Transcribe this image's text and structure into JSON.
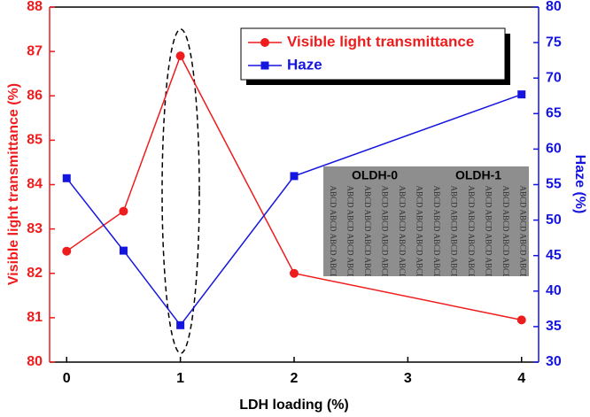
{
  "chart_data": {
    "type": "line",
    "x": [
      0,
      0.5,
      1,
      2,
      4
    ],
    "xlim": [
      -0.15,
      4.15
    ],
    "xticks": [
      0,
      1,
      2,
      3,
      4
    ],
    "xlabel": "LDH loading (%)",
    "ylabel": "Visible light transmittance (%)",
    "y2label": "Haze (%)",
    "ylim": [
      80,
      88
    ],
    "yticks": [
      80,
      81,
      82,
      83,
      84,
      85,
      86,
      87,
      88
    ],
    "y2lim": [
      30,
      80
    ],
    "y2ticks": [
      30,
      35,
      40,
      45,
      50,
      55,
      60,
      65,
      70,
      75,
      80
    ],
    "series": [
      {
        "name": "Visible light transmittance",
        "color": "#ee1c1c",
        "marker": "circle",
        "values": [
          82.5,
          83.4,
          86.9,
          82.0,
          80.95
        ]
      },
      {
        "name": "Haze",
        "color": "#1515e0",
        "marker": "square",
        "axis": "y2",
        "values": [
          55.9,
          45.7,
          35.2,
          56.2,
          67.7
        ]
      }
    ],
    "inset_labels": [
      "OLDH-0",
      "OLDH-1"
    ],
    "inset_text": "ABCD"
  }
}
